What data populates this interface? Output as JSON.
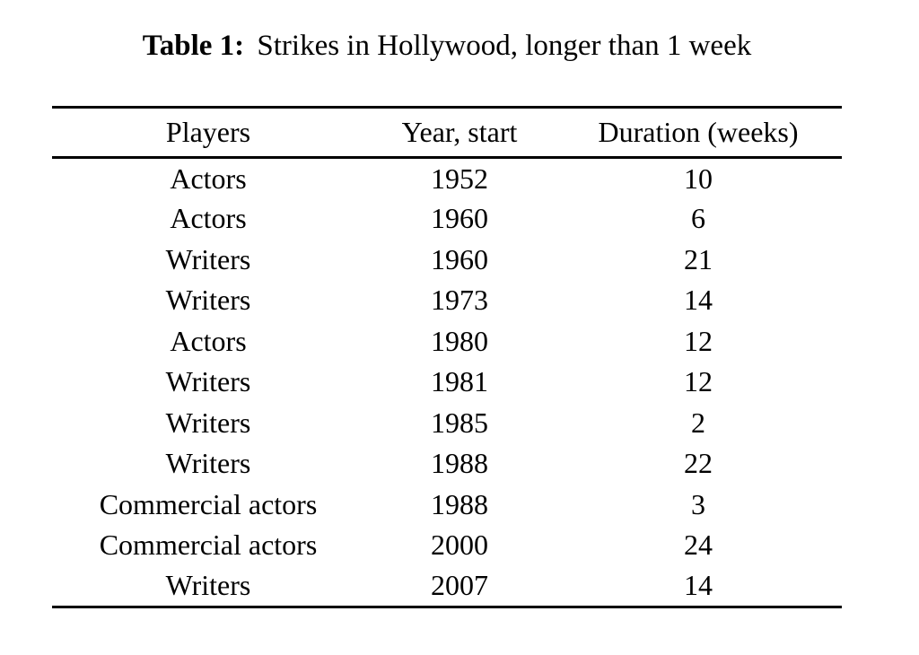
{
  "document": {
    "caption": {
      "label": "Table 1:",
      "text": "Strikes in Hollywood, longer than 1 week"
    },
    "table": {
      "columns": [
        "Players",
        "Year, start",
        "Duration (weeks)"
      ],
      "rows": [
        {
          "players": "Actors",
          "year_start": "1952",
          "duration_weeks": "10"
        },
        {
          "players": "Actors",
          "year_start": "1960",
          "duration_weeks": "6"
        },
        {
          "players": "Writers",
          "year_start": "1960",
          "duration_weeks": "21"
        },
        {
          "players": "Writers",
          "year_start": "1973",
          "duration_weeks": "14"
        },
        {
          "players": "Actors",
          "year_start": "1980",
          "duration_weeks": "12"
        },
        {
          "players": "Writers",
          "year_start": "1981",
          "duration_weeks": "12"
        },
        {
          "players": "Writers",
          "year_start": "1985",
          "duration_weeks": "2"
        },
        {
          "players": "Writers",
          "year_start": "1988",
          "duration_weeks": "22"
        },
        {
          "players": "Commercial actors",
          "year_start": "1988",
          "duration_weeks": "3"
        },
        {
          "players": "Commercial actors",
          "year_start": "2000",
          "duration_weeks": "24"
        },
        {
          "players": "Writers",
          "year_start": "2007",
          "duration_weeks": "14"
        }
      ]
    },
    "colors": {
      "background": "#ffffff",
      "text": "#000000",
      "rule": "#000000"
    }
  }
}
